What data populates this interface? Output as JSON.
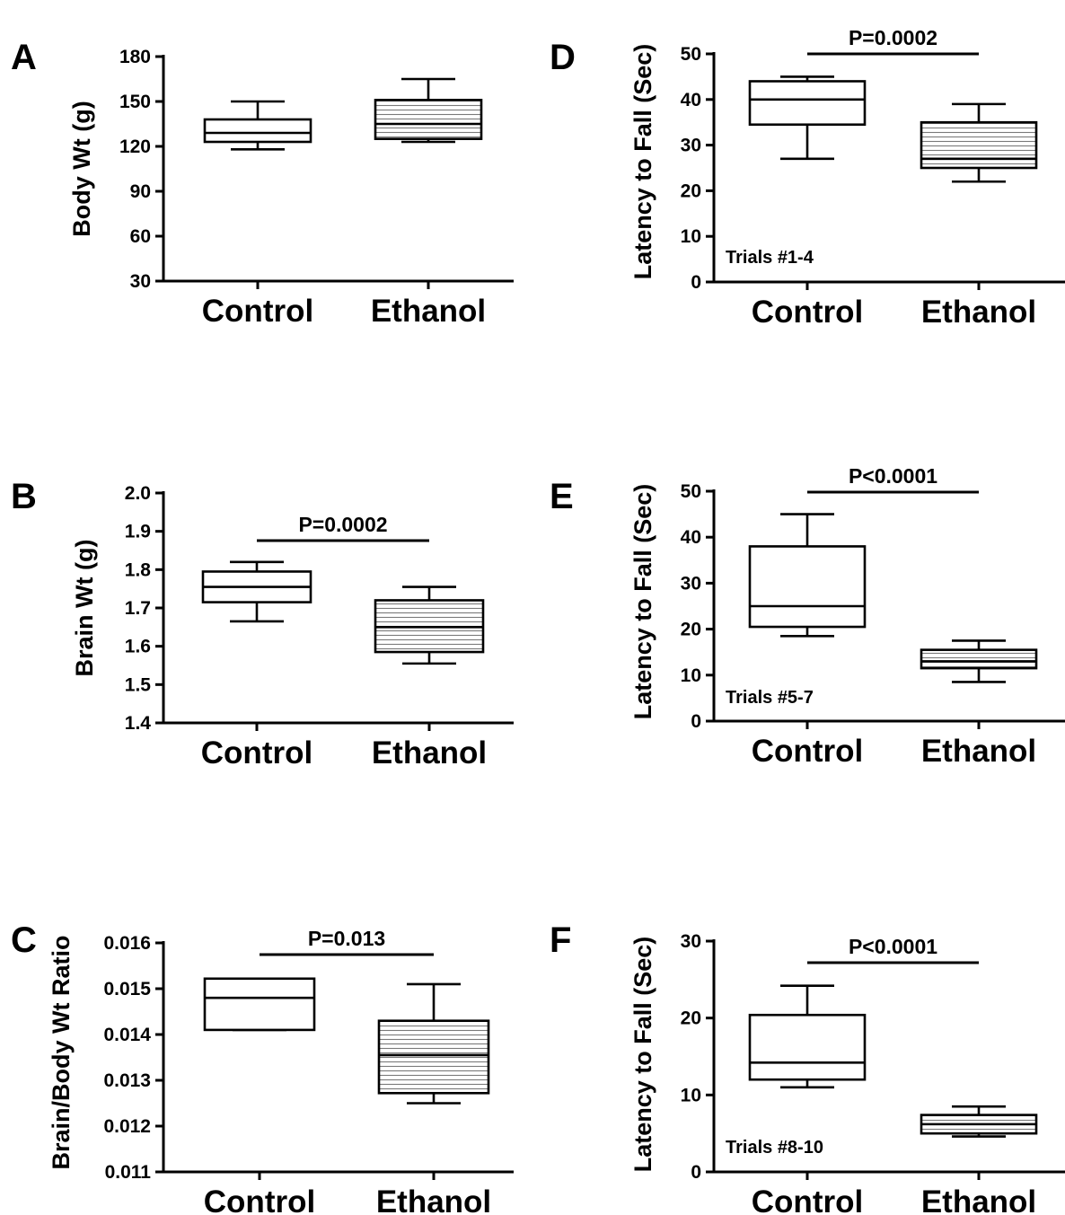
{
  "chart_data": [
    {
      "id": "A",
      "type": "box",
      "panel_label": "A",
      "ylabel": "Body Wt (g)",
      "ylim": [
        30,
        180
      ],
      "yticks": [
        "30",
        "60",
        "90",
        "120",
        "150",
        "180"
      ],
      "categories": [
        "Control",
        "Ethanol"
      ],
      "boxes": [
        {
          "category": "Control",
          "min": 118,
          "q1": 123,
          "median": 129,
          "q3": 138,
          "max": 150,
          "hatched": false
        },
        {
          "category": "Ethanol",
          "min": 123,
          "q1": 125,
          "median": 135,
          "q3": 151,
          "max": 165,
          "hatched": true
        }
      ],
      "pvalue": "",
      "note": ""
    },
    {
      "id": "B",
      "type": "box",
      "panel_label": "B",
      "ylabel": "Brain Wt (g)",
      "ylim": [
        1.4,
        2.0
      ],
      "yticks": [
        "1.4",
        "1.5",
        "1.6",
        "1.7",
        "1.8",
        "1.9",
        "2.0"
      ],
      "categories": [
        "Control",
        "Ethanol"
      ],
      "boxes": [
        {
          "category": "Control",
          "min": 1.665,
          "q1": 1.715,
          "median": 1.755,
          "q3": 1.795,
          "max": 1.82,
          "hatched": false
        },
        {
          "category": "Ethanol",
          "min": 1.555,
          "q1": 1.585,
          "median": 1.65,
          "q3": 1.72,
          "max": 1.755,
          "hatched": true
        }
      ],
      "pvalue": "P=0.0002",
      "note": ""
    },
    {
      "id": "C",
      "type": "box",
      "panel_label": "C",
      "ylabel": "Brain/Body Wt Ratio",
      "ylim": [
        0.011,
        0.016
      ],
      "yticks": [
        "0.011",
        "0.012",
        "0.013",
        "0.014",
        "0.015",
        "0.016"
      ],
      "categories": [
        "Control",
        "Ethanol"
      ],
      "boxes": [
        {
          "category": "Control",
          "min": 0.0141,
          "q1": 0.0141,
          "median": 0.0148,
          "q3": 0.01522,
          "max": 0.01522,
          "hatched": false
        },
        {
          "category": "Ethanol",
          "min": 0.0125,
          "q1": 0.01272,
          "median": 0.01355,
          "q3": 0.0143,
          "max": 0.0151,
          "hatched": true
        }
      ],
      "pvalue": "P=0.013",
      "note": ""
    },
    {
      "id": "D",
      "type": "box",
      "panel_label": "D",
      "ylabel": "Latency to  Fall (Sec)",
      "ylim": [
        0,
        50
      ],
      "yticks": [
        "0",
        "10",
        "20",
        "30",
        "40",
        "50"
      ],
      "categories": [
        "Control",
        "Ethanol"
      ],
      "boxes": [
        {
          "category": "Control",
          "min": 27,
          "q1": 34.5,
          "median": 40,
          "q3": 44,
          "max": 45,
          "hatched": false
        },
        {
          "category": "Ethanol",
          "min": 22,
          "q1": 25,
          "median": 27,
          "q3": 35,
          "max": 39,
          "hatched": true
        }
      ],
      "pvalue": "P=0.0002",
      "note": "Trials #1-4"
    },
    {
      "id": "E",
      "type": "box",
      "panel_label": "E",
      "ylabel": "Latency to  Fall (Sec)",
      "ylim": [
        0,
        50
      ],
      "yticks": [
        "0",
        "10",
        "20",
        "30",
        "40",
        "50"
      ],
      "categories": [
        "Control",
        "Ethanol"
      ],
      "boxes": [
        {
          "category": "Control",
          "min": 18.5,
          "q1": 20.5,
          "median": 25,
          "q3": 38,
          "max": 45,
          "hatched": false
        },
        {
          "category": "Ethanol",
          "min": 8.5,
          "q1": 11.5,
          "median": 13,
          "q3": 15.5,
          "max": 17.5,
          "hatched": true
        }
      ],
      "pvalue": "P<0.0001",
      "note": "Trials #5-7"
    },
    {
      "id": "F",
      "type": "box",
      "panel_label": "F",
      "ylabel": "Latency to  Fall (Sec)",
      "ylim": [
        0,
        30
      ],
      "yticks": [
        "0",
        "10",
        "20",
        "30"
      ],
      "categories": [
        "Control",
        "Ethanol"
      ],
      "boxes": [
        {
          "category": "Control",
          "min": 11,
          "q1": 12,
          "median": 14.2,
          "q3": 20.4,
          "max": 24.2,
          "hatched": false
        },
        {
          "category": "Ethanol",
          "min": 4.6,
          "q1": 5,
          "median": 6.2,
          "q3": 7.4,
          "max": 8.5,
          "hatched": true
        }
      ],
      "pvalue": "P<0.0001",
      "note": "Trials #8-10"
    }
  ]
}
